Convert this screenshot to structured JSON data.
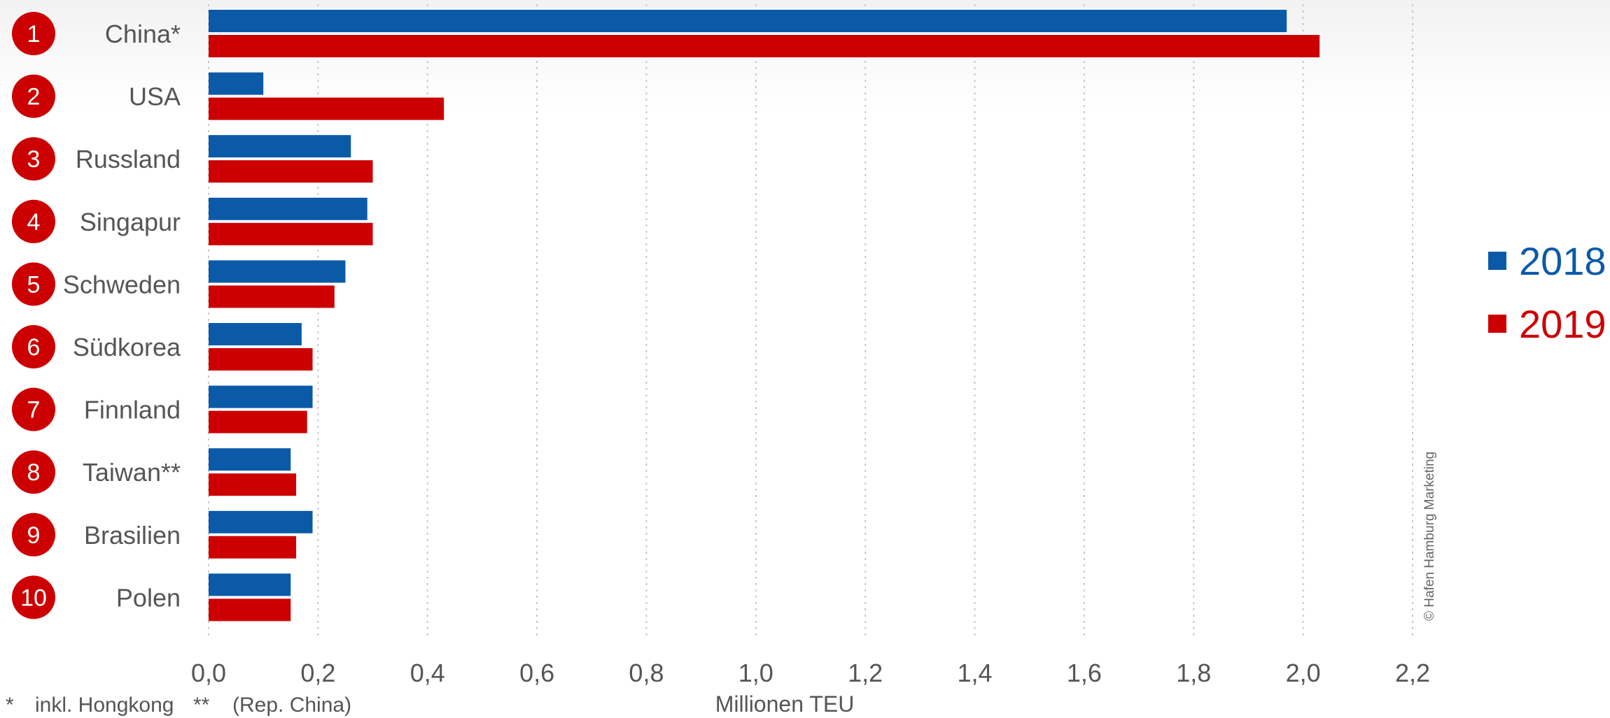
{
  "chart_data": {
    "type": "bar",
    "orientation": "horizontal",
    "ranks": [
      "1",
      "2",
      "3",
      "4",
      "5",
      "6",
      "7",
      "8",
      "9",
      "10"
    ],
    "categories": [
      "China*",
      "USA",
      "Russland",
      "Singapur",
      "Schweden",
      "Südkorea",
      "Finnland",
      "Taiwan**",
      "Brasilien",
      "Polen"
    ],
    "series": [
      {
        "name": "2018",
        "color": "#0a5aa8",
        "values": [
          1.97,
          0.1,
          0.26,
          0.29,
          0.25,
          0.17,
          0.19,
          0.15,
          0.19,
          0.15
        ]
      },
      {
        "name": "2019",
        "color": "#cc0000",
        "values": [
          2.03,
          0.43,
          0.3,
          0.3,
          0.23,
          0.19,
          0.18,
          0.16,
          0.16,
          0.15
        ]
      }
    ],
    "xlabel": "Millionen TEU",
    "xlim": [
      0,
      2.2
    ],
    "xticks": [
      "0,0",
      "0,2",
      "0,4",
      "0,6",
      "0,8",
      "1,0",
      "1,2",
      "1,4",
      "1,6",
      "1,8",
      "2,0",
      "2,2"
    ],
    "grid": "vertical dotted",
    "legend_position": "right"
  },
  "footnotes": [
    {
      "mark": "*",
      "text": "inkl. Hongkong"
    },
    {
      "mark": "**",
      "text": "(Rep. China)"
    }
  ],
  "copyright": "© Hafen Hamburg Marketing",
  "colors": {
    "badge": "#cc0000",
    "label_text": "#555555",
    "grid": "#c8c8c8"
  }
}
